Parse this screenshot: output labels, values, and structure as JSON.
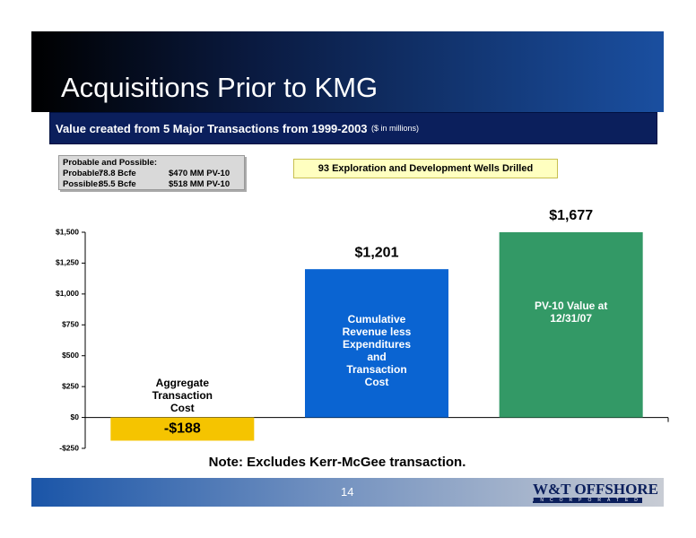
{
  "slide": {
    "title": "Acquisitions Prior to KMG",
    "subtitle": "Value created from 5 Major Transactions from 1999-2003",
    "subtitle_note": "($ in millions)",
    "reserves_box": {
      "heading": "Probable and Possible:",
      "rows": [
        [
          "Probable:",
          "78.8 Bcfe",
          "$470 MM PV-10"
        ],
        [
          "Possible:",
          "85.5 Bcfe",
          "$518 MM PV-10"
        ]
      ]
    },
    "callout": "93 Exploration and Development Wells Drilled",
    "note": "Note: Excludes Kerr-McGee transaction.",
    "page_number": "14",
    "logo": "W&T OFFSHORE",
    "logo_sub": "INCORPORATED"
  },
  "chart_data": {
    "type": "bar",
    "categories": [
      "Aggregate Transaction Cost",
      "Cumulative Revenue less Expenditures and Transaction Cost",
      "PV-10 Value at 12/31/07"
    ],
    "values": [
      -188,
      1201,
      1677
    ],
    "value_labels": [
      "-$188",
      "$1,201",
      "$1,677"
    ],
    "colors": [
      "#f5c400",
      "#0a64d2",
      "#339966"
    ],
    "ylim": [
      -250,
      1500
    ],
    "yticks": [
      {
        "value": -250,
        "label": "-$250"
      },
      {
        "value": 0,
        "label": "$0"
      },
      {
        "value": 250,
        "label": "$250"
      },
      {
        "value": 500,
        "label": "$500"
      },
      {
        "value": 750,
        "label": "$750"
      },
      {
        "value": 1000,
        "label": "$1,000"
      },
      {
        "value": 1250,
        "label": "$1,250"
      },
      {
        "value": 1500,
        "label": "$1,500"
      }
    ]
  }
}
